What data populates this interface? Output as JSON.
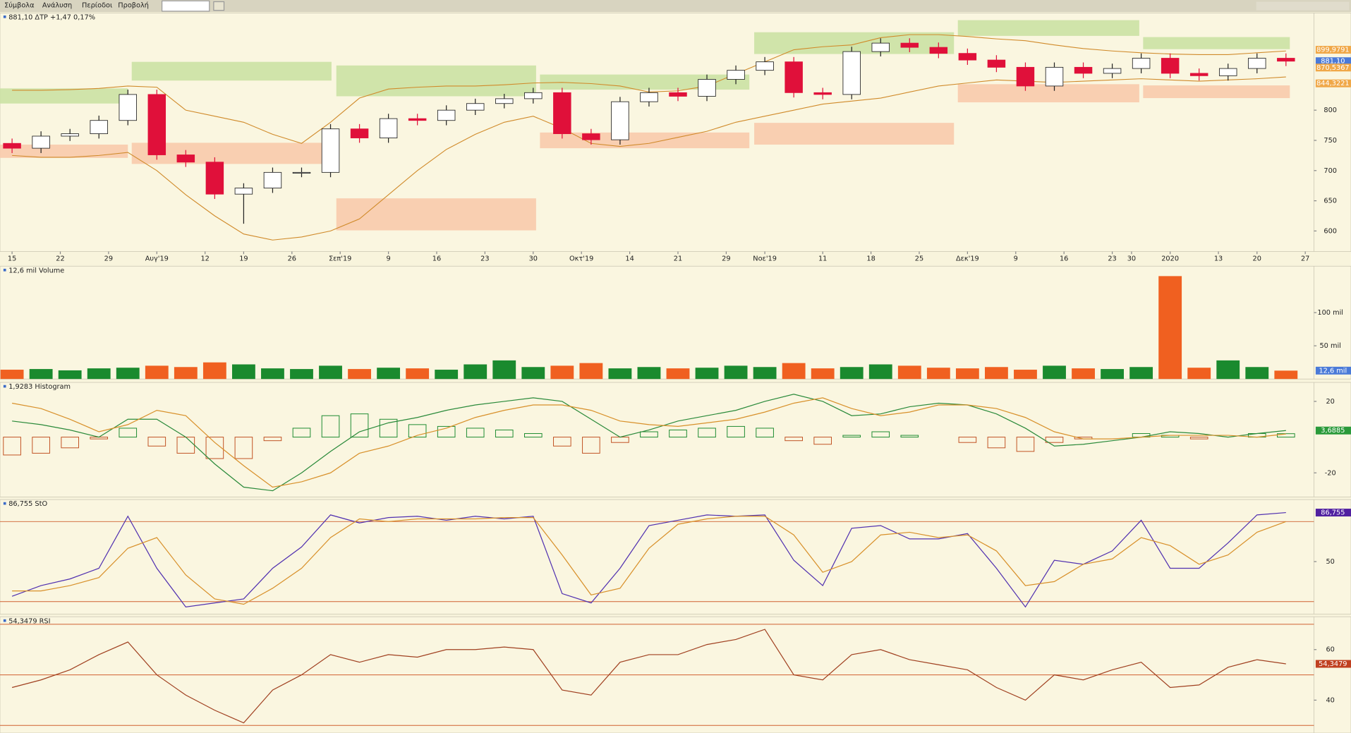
{
  "menu": [
    "Σύμβολα",
    "Ανάλυση",
    "Περίοδοι",
    "Προβολή"
  ],
  "chart_data": [
    {
      "type": "candlestick",
      "title": "881,10 ΔΤΡ +1,47 0,17%",
      "x": [
        0,
        3,
        6,
        9,
        12,
        15,
        18,
        21,
        24,
        27,
        30,
        33,
        36,
        39,
        42,
        45,
        48,
        51,
        54,
        57,
        60,
        63,
        66,
        69,
        72,
        75,
        78,
        81,
        84,
        87,
        90,
        93,
        96,
        99,
        102,
        105,
        108,
        111,
        114,
        117,
        120,
        123,
        126,
        129,
        132
      ],
      "xlim": [
        -1.25,
        134.9
      ],
      "xticks": [
        {
          "value": 0,
          "label": "15"
        },
        {
          "value": 5,
          "label": "22"
        },
        {
          "value": 10,
          "label": "29"
        },
        {
          "value": 15,
          "label": "Αυγ'19"
        },
        {
          "value": 20,
          "label": "12"
        },
        {
          "value": 24,
          "label": "19"
        },
        {
          "value": 29,
          "label": "26"
        },
        {
          "value": 34,
          "label": "Σεπ'19"
        },
        {
          "value": 39,
          "label": "9"
        },
        {
          "value": 44,
          "label": "16"
        },
        {
          "value": 49,
          "label": "23"
        },
        {
          "value": 54,
          "label": "30"
        },
        {
          "value": 59,
          "label": "Οκτ'19"
        },
        {
          "value": 64,
          "label": "14"
        },
        {
          "value": 69,
          "label": "21"
        },
        {
          "value": 74,
          "label": "29"
        },
        {
          "value": 78,
          "label": "Νοε'19"
        },
        {
          "value": 84,
          "label": "11"
        },
        {
          "value": 89,
          "label": "18"
        },
        {
          "value": 94,
          "label": "25"
        },
        {
          "value": 99,
          "label": "Δεκ'19"
        },
        {
          "value": 104,
          "label": "9"
        },
        {
          "value": 109,
          "label": "16"
        },
        {
          "value": 114,
          "label": "23"
        },
        {
          "value": 116,
          "label": "30"
        },
        {
          "value": 120,
          "label": "2020"
        },
        {
          "value": 125,
          "label": "13"
        },
        {
          "value": 129,
          "label": "20"
        },
        {
          "value": 134,
          "label": "27"
        }
      ],
      "ylim": [
        566,
        961
      ],
      "yticks": [
        600,
        650,
        700,
        750,
        800
      ],
      "open": [
        745,
        737,
        757,
        761,
        783,
        826,
        726,
        714,
        661,
        671,
        697,
        697,
        769,
        754,
        786,
        783,
        800,
        811,
        819,
        829,
        761,
        751,
        814,
        829,
        823,
        851,
        866,
        880,
        829,
        826,
        897,
        911,
        904,
        894,
        883,
        871,
        840,
        871,
        861,
        869,
        886,
        861,
        857,
        869,
        886
      ],
      "high": [
        753,
        765,
        769,
        791,
        834,
        834,
        734,
        722,
        679,
        705,
        705,
        777,
        777,
        794,
        794,
        808,
        819,
        827,
        837,
        837,
        769,
        822,
        837,
        837,
        859,
        874,
        888,
        888,
        837,
        905,
        919,
        919,
        912,
        902,
        891,
        879,
        879,
        879,
        877,
        894,
        894,
        869,
        877,
        894,
        894
      ],
      "low": [
        729,
        729,
        749,
        753,
        775,
        718,
        706,
        653,
        612,
        663,
        689,
        689,
        746,
        746,
        775,
        775,
        792,
        803,
        811,
        753,
        743,
        743,
        806,
        815,
        815,
        843,
        858,
        821,
        818,
        818,
        889,
        896,
        886,
        875,
        863,
        832,
        832,
        853,
        853,
        861,
        853,
        849,
        849,
        861,
        873
      ],
      "close": [
        737,
        757,
        761,
        783,
        826,
        726,
        714,
        661,
        671,
        697,
        697,
        769,
        754,
        786,
        783,
        800,
        811,
        819,
        829,
        761,
        751,
        814,
        829,
        823,
        851,
        866,
        880,
        829,
        826,
        897,
        911,
        904,
        894,
        883,
        871,
        840,
        871,
        861,
        869,
        886,
        861,
        857,
        869,
        886,
        881.1
      ],
      "up_color": "#ffffff",
      "down_color": "#e0103a",
      "bands": [
        {
          "color": "#d08a2a",
          "values": [
            833,
            833,
            834,
            836,
            840,
            838,
            800,
            790,
            780,
            760,
            745,
            780,
            820,
            835,
            838,
            840,
            840,
            842,
            845,
            846,
            844,
            840,
            830,
            832,
            840,
            860,
            880,
            900,
            905,
            908,
            920,
            925,
            925,
            922,
            918,
            915,
            908,
            902,
            898,
            895,
            893,
            892,
            892,
            895,
            898
          ]
        },
        {
          "color": "#d08a2a",
          "values": [
            725,
            722,
            722,
            725,
            730,
            700,
            660,
            625,
            595,
            585,
            590,
            600,
            620,
            660,
            700,
            735,
            760,
            780,
            790,
            770,
            745,
            740,
            745,
            755,
            765,
            780,
            790,
            800,
            810,
            815,
            820,
            830,
            840,
            845,
            850,
            848,
            846,
            848,
            850,
            852,
            850,
            848,
            850,
            852,
            855
          ]
        }
      ],
      "zones": [
        {
          "x": [
            -1.25,
            12
          ],
          "y": [
            811,
            836
          ],
          "color": "#c8e0a0"
        },
        {
          "x": [
            12.4,
            33.1
          ],
          "y": [
            849,
            880
          ],
          "color": "#c8e0a0"
        },
        {
          "x": [
            33.6,
            54.3
          ],
          "y": [
            823,
            874
          ],
          "color": "#c8e0a0"
        },
        {
          "x": [
            54.7,
            76.4
          ],
          "y": [
            834,
            859
          ],
          "color": "#c8e0a0"
        },
        {
          "x": [
            76.9,
            97.6
          ],
          "y": [
            893,
            929
          ],
          "color": "#c8e0a0"
        },
        {
          "x": [
            98,
            116.8
          ],
          "y": [
            923,
            949
          ],
          "color": "#c8e0a0"
        },
        {
          "x": [
            117.2,
            132.4
          ],
          "y": [
            901,
            921
          ],
          "color": "#c8e0a0"
        },
        {
          "x": [
            -1.25,
            12
          ],
          "y": [
            721,
            743
          ],
          "color": "#f8c8a8"
        },
        {
          "x": [
            12.4,
            33.1
          ],
          "y": [
            711,
            746
          ],
          "color": "#f8c8a8"
        },
        {
          "x": [
            33.6,
            54.3
          ],
          "y": [
            601,
            654
          ],
          "color": "#f8c8a8"
        },
        {
          "x": [
            54.7,
            76.4
          ],
          "y": [
            737,
            763
          ],
          "color": "#f8c8a8"
        },
        {
          "x": [
            76.9,
            97.6
          ],
          "y": [
            743,
            779
          ],
          "color": "#f8c8a8"
        },
        {
          "x": [
            98,
            116.8
          ],
          "y": [
            813,
            843
          ],
          "color": "#f8c8a8"
        },
        {
          "x": [
            117.2,
            132.4
          ],
          "y": [
            820,
            841
          ],
          "color": "#f8c8a8"
        }
      ],
      "value_markers": [
        {
          "value": 899.9791,
          "label": "899,9791",
          "color": "#f0a848"
        },
        {
          "value": 881.1,
          "label": "881,10",
          "color": "#4a7ad8"
        },
        {
          "value": 870.5367,
          "label": "870,5367",
          "color": "#f0a848"
        },
        {
          "value": 844.3221,
          "label": "844,3221",
          "color": "#f0a848"
        }
      ]
    },
    {
      "type": "bar",
      "title": "12,6 mil Volume",
      "ylim": [
        0,
        170
      ],
      "yticks": [
        {
          "value": 50,
          "label": "50 mil"
        },
        {
          "value": 100,
          "label": "100 mil"
        }
      ],
      "values": [
        14,
        15,
        13,
        16,
        17,
        20,
        18,
        25,
        22,
        16,
        15,
        20,
        15,
        17,
        16,
        14,
        22,
        28,
        18,
        20,
        24,
        16,
        18,
        16,
        17,
        20,
        18,
        24,
        16,
        18,
        22,
        20,
        17,
        16,
        18,
        14,
        20,
        16,
        15,
        18,
        155,
        17,
        28,
        18,
        12.6
      ],
      "up_color": "#1a8a2e",
      "down_color": "#f06020",
      "value_markers": [
        {
          "value": 12.6,
          "label": "12,6 mil",
          "color": "#4a7ad8"
        }
      ]
    },
    {
      "type": "line",
      "title": "1,9283 Histogram",
      "ylim": [
        -33.5,
        30.6
      ],
      "yticks": [
        20,
        -20
      ],
      "histogram": {
        "values": [
          -10,
          -9,
          -6,
          -1,
          5,
          -5,
          -9,
          -12,
          -12,
          -2,
          5,
          12,
          13,
          10,
          7,
          6,
          5,
          4,
          2,
          -5,
          -9,
          -3,
          3,
          4,
          5,
          6,
          5,
          -2,
          -4,
          1,
          3,
          1,
          0,
          -3,
          -6,
          -8,
          -3,
          -1,
          0,
          2,
          1,
          -1,
          0,
          2,
          1.9283
        ],
        "up_color": "#1a8a2e",
        "down_color": "#c05020"
      },
      "series": [
        {
          "color": "#2a8a3a",
          "values": [
            9,
            7,
            4,
            0,
            10,
            10,
            0,
            -15,
            -28,
            -30,
            -20,
            -8,
            3,
            8,
            11,
            15,
            18,
            20,
            22,
            20,
            10,
            0,
            4,
            9,
            12,
            15,
            20,
            24,
            20,
            12,
            13,
            17,
            19,
            18,
            13,
            5,
            -5,
            -4,
            -2,
            0,
            3,
            2,
            0,
            2,
            3.6885
          ]
        },
        {
          "color": "#d8902a",
          "values": [
            19,
            16,
            10,
            3,
            7,
            15,
            12,
            -3,
            -16,
            -28,
            -25,
            -20,
            -9,
            -5,
            1,
            5,
            11,
            15,
            18,
            18,
            15,
            9,
            7,
            6,
            8,
            10,
            14,
            19,
            22,
            16,
            12,
            14,
            18,
            18,
            16,
            11,
            3,
            -1,
            -1,
            0,
            1,
            1,
            1,
            0,
            1.76
          ]
        }
      ],
      "value_markers": [
        {
          "value": 3.6885,
          "label": "3,6885",
          "color": "#2a9a3a"
        }
      ]
    },
    {
      "type": "line",
      "title": "86,755 StO",
      "ylim": [
        10.6,
        96.5
      ],
      "yticks": [
        50
      ],
      "hlines": [
        20,
        80
      ],
      "series": [
        {
          "color": "#5030b0",
          "values": [
            24,
            32,
            37,
            45,
            84,
            45,
            16,
            19,
            22,
            45,
            61,
            85,
            79,
            83,
            84,
            81,
            84,
            82,
            84,
            26,
            19,
            45,
            77,
            81,
            85,
            84,
            85,
            51,
            32,
            75,
            77,
            67,
            67,
            71,
            45,
            16,
            51,
            48,
            58,
            81,
            45,
            45,
            64,
            85,
            86.755
          ]
        },
        {
          "color": "#d8902a",
          "values": [
            28,
            28,
            32,
            38,
            60,
            68,
            40,
            22,
            18,
            30,
            45,
            68,
            82,
            80,
            82,
            82,
            82,
            83,
            83,
            55,
            25,
            30,
            60,
            78,
            82,
            84,
            84,
            70,
            42,
            50,
            70,
            72,
            68,
            70,
            58,
            32,
            35,
            48,
            52,
            68,
            62,
            48,
            55,
            72,
            80
          ]
        }
      ],
      "value_markers": [
        {
          "value": 86.755,
          "label": "86,755",
          "color": "#5020a0"
        }
      ]
    },
    {
      "type": "line",
      "title": "54,3479 RSI",
      "ylim": [
        27,
        73
      ],
      "yticks": [
        60,
        40
      ],
      "hlines": [
        70,
        50,
        30
      ],
      "series": [
        {
          "color": "#a04020",
          "values": [
            45,
            48,
            52,
            58,
            63,
            50,
            42,
            36,
            31,
            44,
            50,
            58,
            55,
            58,
            57,
            60,
            60,
            61,
            60,
            44,
            42,
            55,
            58,
            58,
            62,
            64,
            68,
            50,
            48,
            58,
            60,
            56,
            54,
            52,
            45,
            40,
            50,
            48,
            52,
            55,
            45,
            46,
            53,
            56,
            54.3479
          ]
        }
      ],
      "value_markers": [
        {
          "value": 54.3479,
          "label": "54,3479",
          "color": "#c04020"
        }
      ]
    }
  ]
}
